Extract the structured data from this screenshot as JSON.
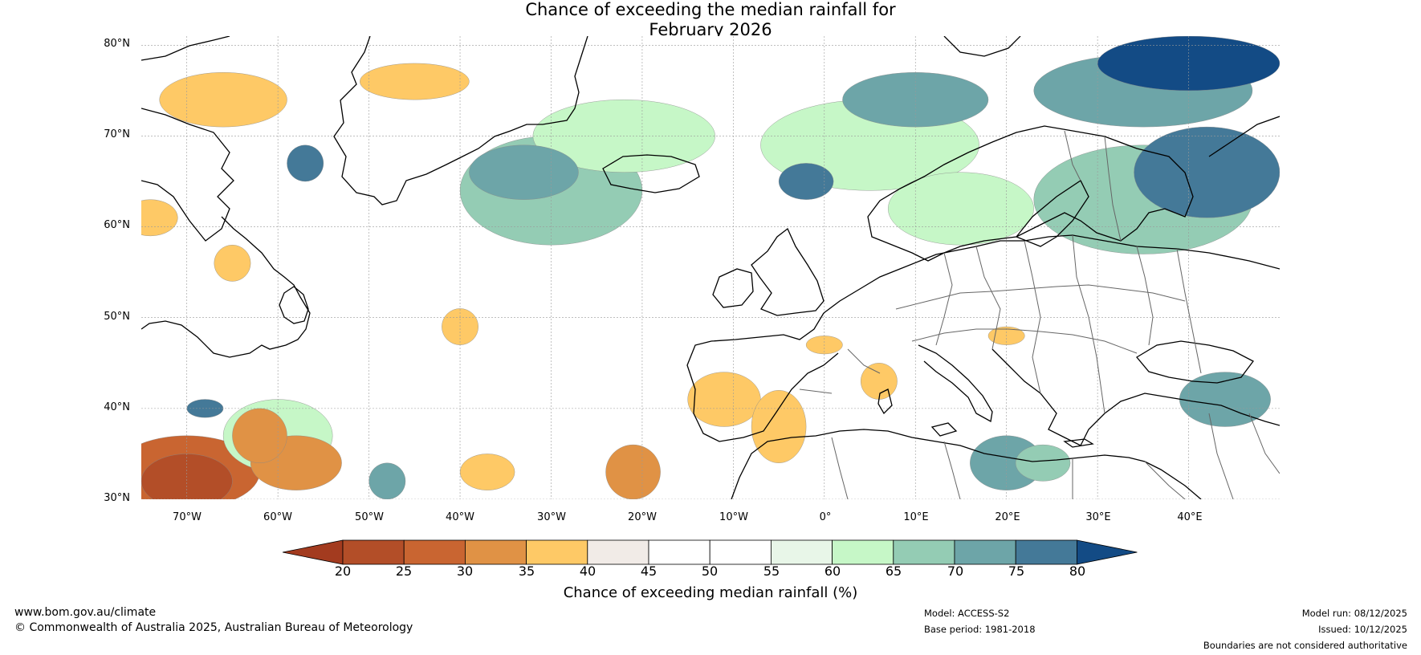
{
  "title": {
    "line1": "Chance of exceeding the median rainfall for",
    "line2": "February 2026"
  },
  "map": {
    "lat_range": [
      30,
      81
    ],
    "lon_range": [
      -75,
      50
    ],
    "lat_ticks": [
      {
        "value": 80,
        "label": "80°N"
      },
      {
        "value": 70,
        "label": "70°N"
      },
      {
        "value": 60,
        "label": "60°N"
      },
      {
        "value": 50,
        "label": "50°N"
      },
      {
        "value": 40,
        "label": "40°N"
      },
      {
        "value": 30,
        "label": "30°N"
      }
    ],
    "lon_ticks": [
      {
        "value": -70,
        "label": "70°W"
      },
      {
        "value": -60,
        "label": "60°W"
      },
      {
        "value": -50,
        "label": "50°W"
      },
      {
        "value": -40,
        "label": "40°W"
      },
      {
        "value": -30,
        "label": "30°W"
      },
      {
        "value": -20,
        "label": "20°W"
      },
      {
        "value": -10,
        "label": "10°W"
      },
      {
        "value": 0,
        "label": "0°"
      },
      {
        "value": 10,
        "label": "10°E"
      },
      {
        "value": 20,
        "label": "20°E"
      },
      {
        "value": 30,
        "label": "30°E"
      },
      {
        "value": 40,
        "label": "40°E"
      }
    ],
    "regions": [
      {
        "lon": 40,
        "lat": 78,
        "rx": 10,
        "ry": 3,
        "value": 82
      },
      {
        "lon": 35,
        "lat": 75,
        "rx": 12,
        "ry": 4,
        "value": 72
      },
      {
        "lon": 10,
        "lat": 74,
        "rx": 8,
        "ry": 3,
        "value": 72
      },
      {
        "lon": 42,
        "lat": 66,
        "rx": 8,
        "ry": 5,
        "value": 78
      },
      {
        "lon": 35,
        "lat": 63,
        "rx": 12,
        "ry": 6,
        "value": 65
      },
      {
        "lon": -2,
        "lat": 65,
        "rx": 3,
        "ry": 2,
        "value": 76
      },
      {
        "lon": -30,
        "lat": 64,
        "rx": 10,
        "ry": 6,
        "value": 67
      },
      {
        "lon": -33,
        "lat": 66,
        "rx": 6,
        "ry": 3,
        "value": 72
      },
      {
        "lon": -57,
        "lat": 67,
        "rx": 2,
        "ry": 2,
        "value": 77
      },
      {
        "lon": -22,
        "lat": 70,
        "rx": 10,
        "ry": 4,
        "value": 62
      },
      {
        "lon": 5,
        "lat": 69,
        "rx": 12,
        "ry": 5,
        "value": 62
      },
      {
        "lon": 15,
        "lat": 62,
        "rx": 8,
        "ry": 4,
        "value": 62
      },
      {
        "lon": 20,
        "lat": 34,
        "rx": 4,
        "ry": 3,
        "value": 72
      },
      {
        "lon": 24,
        "lat": 34,
        "rx": 3,
        "ry": 2,
        "value": 66
      },
      {
        "lon": 44,
        "lat": 41,
        "rx": 5,
        "ry": 3,
        "value": 72
      },
      {
        "lon": -60,
        "lat": 37,
        "rx": 6,
        "ry": 4,
        "value": 62
      },
      {
        "lon": -48,
        "lat": 32,
        "rx": 2,
        "ry": 2,
        "value": 72
      },
      {
        "lon": -68,
        "lat": 40,
        "rx": 2,
        "ry": 1,
        "value": 77
      },
      {
        "lon": -66,
        "lat": 74,
        "rx": 7,
        "ry": 3,
        "value": 38
      },
      {
        "lon": -45,
        "lat": 76,
        "rx": 6,
        "ry": 2,
        "value": 38
      },
      {
        "lon": -70,
        "lat": 33,
        "rx": 8,
        "ry": 4,
        "value": 27
      },
      {
        "lon": -70,
        "lat": 32,
        "rx": 5,
        "ry": 3,
        "value": 22
      },
      {
        "lon": -62,
        "lat": 37,
        "rx": 3,
        "ry": 3,
        "value": 30
      },
      {
        "lon": -58,
        "lat": 34,
        "rx": 5,
        "ry": 3,
        "value": 33
      },
      {
        "lon": -37,
        "lat": 33,
        "rx": 3,
        "ry": 2,
        "value": 38
      },
      {
        "lon": -21,
        "lat": 33,
        "rx": 3,
        "ry": 3,
        "value": 33
      },
      {
        "lon": -11,
        "lat": 41,
        "rx": 4,
        "ry": 3,
        "value": 38
      },
      {
        "lon": -5,
        "lat": 38,
        "rx": 3,
        "ry": 4,
        "value": 38
      },
      {
        "lon": 6,
        "lat": 43,
        "rx": 2,
        "ry": 2,
        "value": 38
      },
      {
        "lon": 20,
        "lat": 48,
        "rx": 2,
        "ry": 1,
        "value": 38
      },
      {
        "lon": 0,
        "lat": 47,
        "rx": 2,
        "ry": 1,
        "value": 38
      },
      {
        "lon": -40,
        "lat": 49,
        "rx": 2,
        "ry": 2,
        "value": 38
      },
      {
        "lon": -74,
        "lat": 61,
        "rx": 3,
        "ry": 2,
        "value": 38
      },
      {
        "lon": -65,
        "lat": 56,
        "rx": 2,
        "ry": 2,
        "value": 38
      }
    ]
  },
  "colorbar": {
    "ticks": [
      "20",
      "25",
      "30",
      "35",
      "40",
      "45",
      "50",
      "55",
      "60",
      "65",
      "70",
      "75",
      "80"
    ],
    "colors": [
      "#a33b1f",
      "#b34e28",
      "#c96531",
      "#e09245",
      "#fec966",
      "#f1ebe7",
      "#ffffff",
      "#ffffff",
      "#e8f6e8",
      "#c6f7c7",
      "#94ccb4",
      "#6da5a8",
      "#447998",
      "#134b85"
    ],
    "label": "Chance of exceeding median rainfall (%)"
  },
  "footer": {
    "website": "www.bom.gov.au/climate",
    "copyright": "© Commonwealth of Australia 2025, Australian Bureau of Meteorology",
    "model": "Model: ACCESS-S2",
    "base_period": "Base period: 1981-2018",
    "model_run": "Model run: 08/12/2025",
    "issued": "Issued: 10/12/2025",
    "disclaimer": "Boundaries are not considered authoritative"
  }
}
